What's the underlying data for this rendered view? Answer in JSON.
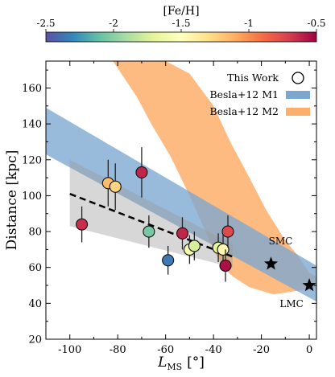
{
  "chart_data": {
    "type": "scatter",
    "title": "",
    "xlabel_main": "L",
    "xlabel_sub": "MS",
    "xlabel_unit": "[°]",
    "ylabel": "Distance [kpc]",
    "xlim": [
      -110,
      3
    ],
    "ylim": [
      20,
      175
    ],
    "xticks": [
      -100,
      -80,
      -60,
      -40,
      -20,
      0
    ],
    "yticks": [
      20,
      40,
      60,
      80,
      100,
      120,
      140,
      160
    ],
    "grid": false,
    "colorbar": {
      "label": "[Fe/H]",
      "min": -2.5,
      "max": -0.5,
      "ticks": [
        -2.5,
        -2.0,
        -1.5,
        -1.0,
        -0.5
      ],
      "colormap": [
        "#5e4fa2",
        "#3288bd",
        "#66c2a5",
        "#abdda4",
        "#e6f598",
        "#ffffbf",
        "#fee08b",
        "#fdae61",
        "#f46d43",
        "#d53e4f",
        "#9e0142"
      ]
    },
    "legend": {
      "position": "top-right",
      "entries": [
        {
          "label": "This Work",
          "kind": "marker"
        },
        {
          "label": "Besla+12 M1",
          "kind": "patch",
          "color": "#7ba7d1"
        },
        {
          "label": "Besla+12 M2",
          "kind": "patch",
          "color": "#fdae6b"
        }
      ]
    },
    "series": [
      {
        "name": "This Work",
        "points": [
          {
            "x": -95,
            "y": 84,
            "err": 10,
            "feh": -0.65
          },
          {
            "x": -84,
            "y": 107,
            "err": 13,
            "feh": -1.15
          },
          {
            "x": -81,
            "y": 105,
            "err": 13,
            "feh": -1.25
          },
          {
            "x": -70,
            "y": 113,
            "err": 14,
            "feh": -0.62
          },
          {
            "x": -67,
            "y": 80,
            "err": 9,
            "feh": -2.05
          },
          {
            "x": -59,
            "y": 64,
            "err": 8,
            "feh": -2.35
          },
          {
            "x": -53,
            "y": 79,
            "err": 9,
            "feh": -0.62
          },
          {
            "x": -50,
            "y": 70,
            "err": 8,
            "feh": -1.6
          },
          {
            "x": -48,
            "y": 72,
            "err": 8,
            "feh": -1.75
          },
          {
            "x": -38,
            "y": 71,
            "err": 8,
            "feh": -1.7
          },
          {
            "x": -36,
            "y": 70,
            "err": 8,
            "feh": -1.45
          },
          {
            "x": -34,
            "y": 80,
            "err": 9,
            "feh": -0.75
          },
          {
            "x": -35,
            "y": 61,
            "err": 9,
            "feh": -0.55
          }
        ]
      }
    ],
    "fit_line": {
      "x": [
        -100,
        -32
      ],
      "y": [
        101,
        66
      ],
      "style": "dashed"
    },
    "fit_band": [
      [
        -100,
        83
      ],
      [
        -100,
        120
      ],
      [
        -32,
        73
      ],
      [
        -32,
        60
      ]
    ],
    "m1_band": [
      [
        -110,
        149
      ],
      [
        3,
        61
      ],
      [
        3,
        41
      ],
      [
        -110,
        123
      ]
    ],
    "m2_band": {
      "upper": [
        [
          -97,
          175
        ],
        [
          -75,
          175
        ],
        [
          -60,
          175
        ],
        [
          -50,
          168
        ],
        [
          -40,
          150
        ],
        [
          -33,
          130
        ],
        [
          -25,
          110
        ],
        [
          -18,
          92
        ],
        [
          -10,
          75
        ],
        [
          -5,
          67
        ],
        [
          0,
          57
        ],
        [
          3,
          55
        ]
      ],
      "lower": [
        [
          3,
          49
        ],
        [
          -5,
          47
        ],
        [
          -15,
          45
        ],
        [
          -25,
          49
        ],
        [
          -32,
          55
        ],
        [
          -36,
          60
        ],
        [
          -40,
          70
        ],
        [
          -44,
          82
        ],
        [
          -50,
          100
        ],
        [
          -58,
          122
        ],
        [
          -66,
          140
        ],
        [
          -72,
          155
        ],
        [
          -78,
          167
        ],
        [
          -82,
          175
        ]
      ]
    },
    "annotations": [
      {
        "label": "SMC",
        "x": -16,
        "y": 62,
        "marker": "star"
      },
      {
        "label": "LMC",
        "x": 0,
        "y": 50,
        "marker": "star"
      }
    ]
  }
}
